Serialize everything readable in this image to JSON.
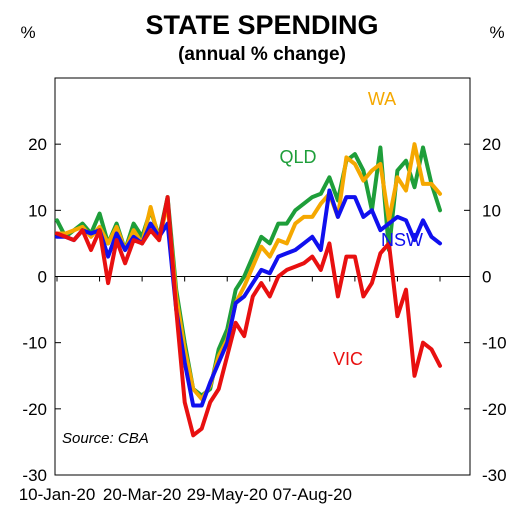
{
  "chart_data": {
    "type": "line",
    "title": "STATE SPENDING",
    "subtitle": "(annual % change)",
    "y_unit_left": "%",
    "y_unit_right": "%",
    "ylim": [
      -30,
      30
    ],
    "yticks": [
      20,
      10,
      0,
      -10,
      -20,
      -30
    ],
    "x_tick_labels": [
      "10-Jan-20",
      "20-Mar-20",
      "29-May-20",
      "07-Aug-20"
    ],
    "x_tick_weeks": [
      0,
      10,
      20,
      30
    ],
    "source": "Source: CBA",
    "colors": {
      "WA": "#f5a800",
      "QLD": "#1e9e3a",
      "NSW": "#1010ee",
      "VIC": "#e81010"
    },
    "series": [
      {
        "name": "QLD",
        "values": [
          8.5,
          6,
          7,
          8,
          6.5,
          9.5,
          5,
          8,
          4,
          8,
          6,
          10,
          6,
          12,
          -2,
          -10,
          -17,
          -18,
          -17,
          -11,
          -8,
          -2,
          0,
          3,
          6,
          5,
          8,
          8,
          10,
          11,
          12,
          12.5,
          15,
          11.5,
          17.5,
          18.5,
          16,
          10,
          19.5,
          4,
          16,
          17.5,
          13.5,
          19.5,
          14,
          10
        ]
      },
      {
        "name": "WA",
        "values": [
          6.5,
          6.5,
          7,
          7.5,
          6,
          7.5,
          5,
          7.5,
          4,
          7,
          5,
          10.5,
          5.5,
          11,
          -3,
          -11,
          -17,
          -18.5,
          -16.5,
          -12,
          -9.5,
          -4,
          -1.5,
          1.5,
          4.5,
          3,
          5.5,
          5,
          8,
          9,
          9,
          11,
          12.5,
          9,
          18,
          17,
          14.5,
          16,
          17,
          8.5,
          15,
          13,
          20,
          14,
          14,
          12.5
        ]
      },
      {
        "name": "NSW",
        "values": [
          6,
          6,
          5.5,
          7,
          6.5,
          7,
          3,
          6.5,
          4,
          6,
          5,
          8,
          6,
          8,
          -5,
          -13,
          -19.5,
          -19.5,
          -16,
          -13,
          -10,
          -4,
          -3,
          -1,
          1,
          0.5,
          3,
          3.5,
          4,
          5,
          6,
          4,
          13,
          9,
          12,
          12,
          9,
          10,
          7,
          8,
          9,
          8.5,
          5.5,
          8.5,
          6,
          5
        ]
      },
      {
        "name": "VIC",
        "values": [
          6.5,
          6,
          5.5,
          7,
          4,
          7,
          -1,
          5.5,
          2,
          5.5,
          5,
          7,
          5.5,
          12,
          -5,
          -19,
          -24,
          -23,
          -19,
          -17,
          -12,
          -7,
          -9,
          -3,
          -1,
          -3,
          0,
          1,
          1.5,
          2,
          3,
          1,
          5,
          -3,
          3,
          3,
          -3,
          -1,
          3.5,
          5,
          -6,
          -2,
          -15,
          -10,
          -11,
          -13.5
        ]
      }
    ]
  }
}
